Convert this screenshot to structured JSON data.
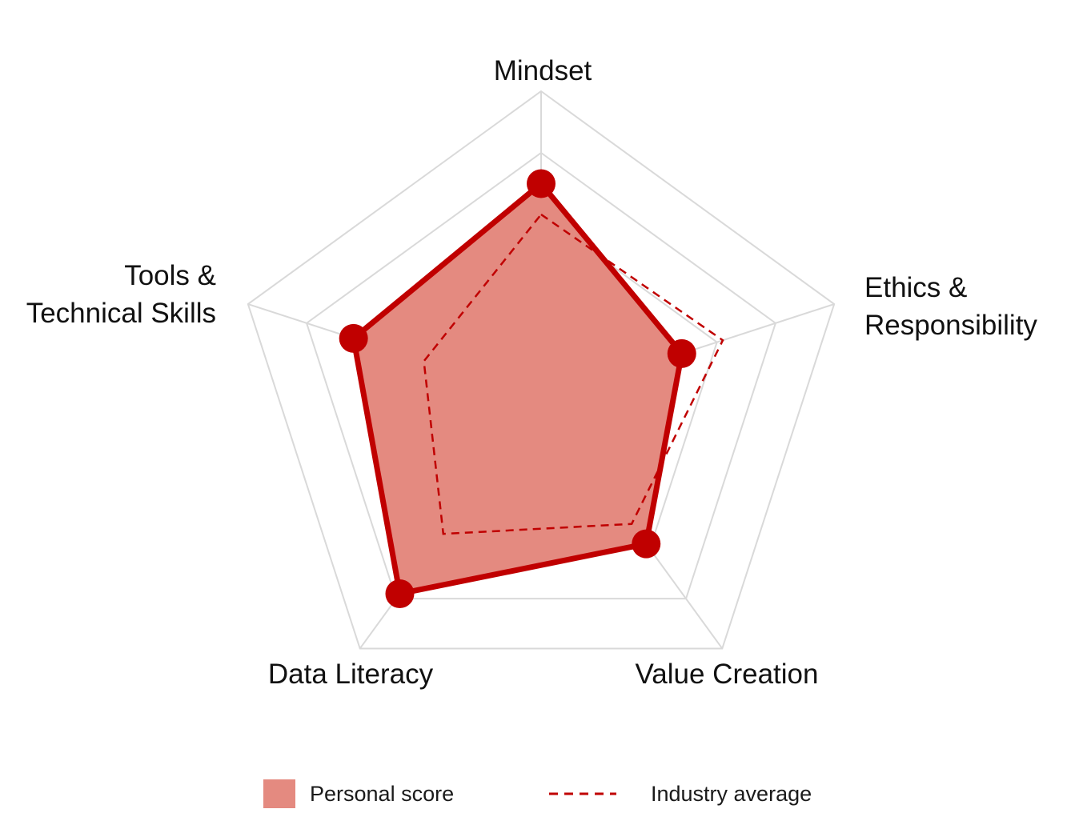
{
  "chart_data": {
    "type": "radar",
    "title": "",
    "axes": [
      {
        "lines": [
          "Mindset"
        ]
      },
      {
        "lines": [
          "Ethics &",
          "Responsibility"
        ]
      },
      {
        "lines": [
          "Value Creation"
        ]
      },
      {
        "lines": [
          "Data Literacy"
        ]
      },
      {
        "lines": [
          "Tools &",
          "Technical Skills"
        ]
      }
    ],
    "range": [
      0,
      5
    ],
    "grid_levels": 5,
    "grid": true,
    "series": [
      {
        "name": "Personal score",
        "style": "filled-with-markers",
        "values": [
          3.5,
          2.4,
          2.9,
          3.9,
          3.2
        ],
        "line_color": "#c00000",
        "fill_color": "#e48a80"
      },
      {
        "name": "Industry average",
        "style": "dashed",
        "values": [
          3.0,
          3.1,
          2.5,
          2.7,
          2.0
        ],
        "line_color": "#c00000"
      }
    ],
    "legend_position": "bottom"
  },
  "colors": {
    "grid": "#d9d9d9",
    "text": "#111111"
  }
}
